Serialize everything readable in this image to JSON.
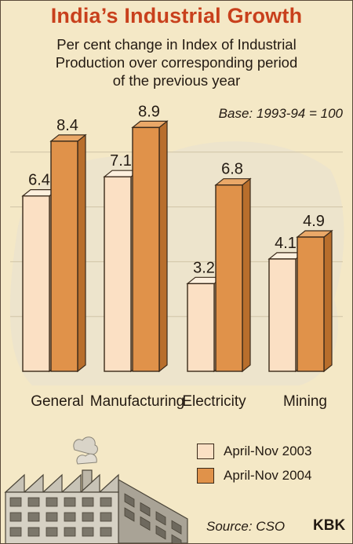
{
  "title": "India’s Industrial Growth",
  "subtitle": "Per cent change in Index of Industrial\nProduction over corresponding period\nof the previous year",
  "base_note": "Base: 1993-94 = 100",
  "source": "Source: CSO",
  "credit": "KBK",
  "colors": {
    "series_2003": "#fbe0c4",
    "series_2004": "#e0924a",
    "background": "#f4e8c6",
    "title": "#c8401c"
  },
  "chart_data": {
    "type": "bar",
    "categories": [
      "General",
      "Manufacturing",
      "Electricity",
      "Mining"
    ],
    "series": [
      {
        "name": "April-Nov 2003",
        "values": [
          6.4,
          7.1,
          3.2,
          4.1
        ]
      },
      {
        "name": "April-Nov 2004",
        "values": [
          8.4,
          8.9,
          6.8,
          4.9
        ]
      }
    ],
    "ylim": [
      0,
      10
    ],
    "legend": "bottom-right",
    "grid": true
  }
}
